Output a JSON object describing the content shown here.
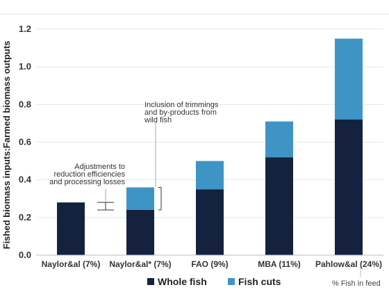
{
  "chart_data": {
    "type": "bar",
    "stacked": true,
    "categories": [
      "Naylor&al (7%)",
      "Naylor&al* (7%)",
      "FAO (9%)",
      "MBA (11%)",
      "Pahlow&al (24%)"
    ],
    "series": [
      {
        "name": "Whole fish",
        "color": "#15223f",
        "values": [
          0.28,
          0.24,
          0.35,
          0.52,
          0.72
        ]
      },
      {
        "name": "Fish cuts",
        "color": "#3f94c6",
        "values": [
          0.0,
          0.12,
          0.15,
          0.19,
          0.43
        ]
      }
    ],
    "ylabel": "Fished biomass inputs:Farmed biomass outputs",
    "ylim": [
      0,
      1.2
    ],
    "yticks": [
      "0.0",
      "0.2",
      "0.4",
      "0.6",
      "0.8",
      "1.0",
      "1.2"
    ],
    "grid": true,
    "legend_position": "bottom",
    "annotations": {
      "adjustments": [
        "Adjustments to",
        "reduction efficiencies",
        "and processing losses"
      ],
      "trimmings": [
        "Inclusion of trimmings",
        "and by-products from",
        "wild fish"
      ]
    },
    "footnote": "% Fish in feed"
  }
}
